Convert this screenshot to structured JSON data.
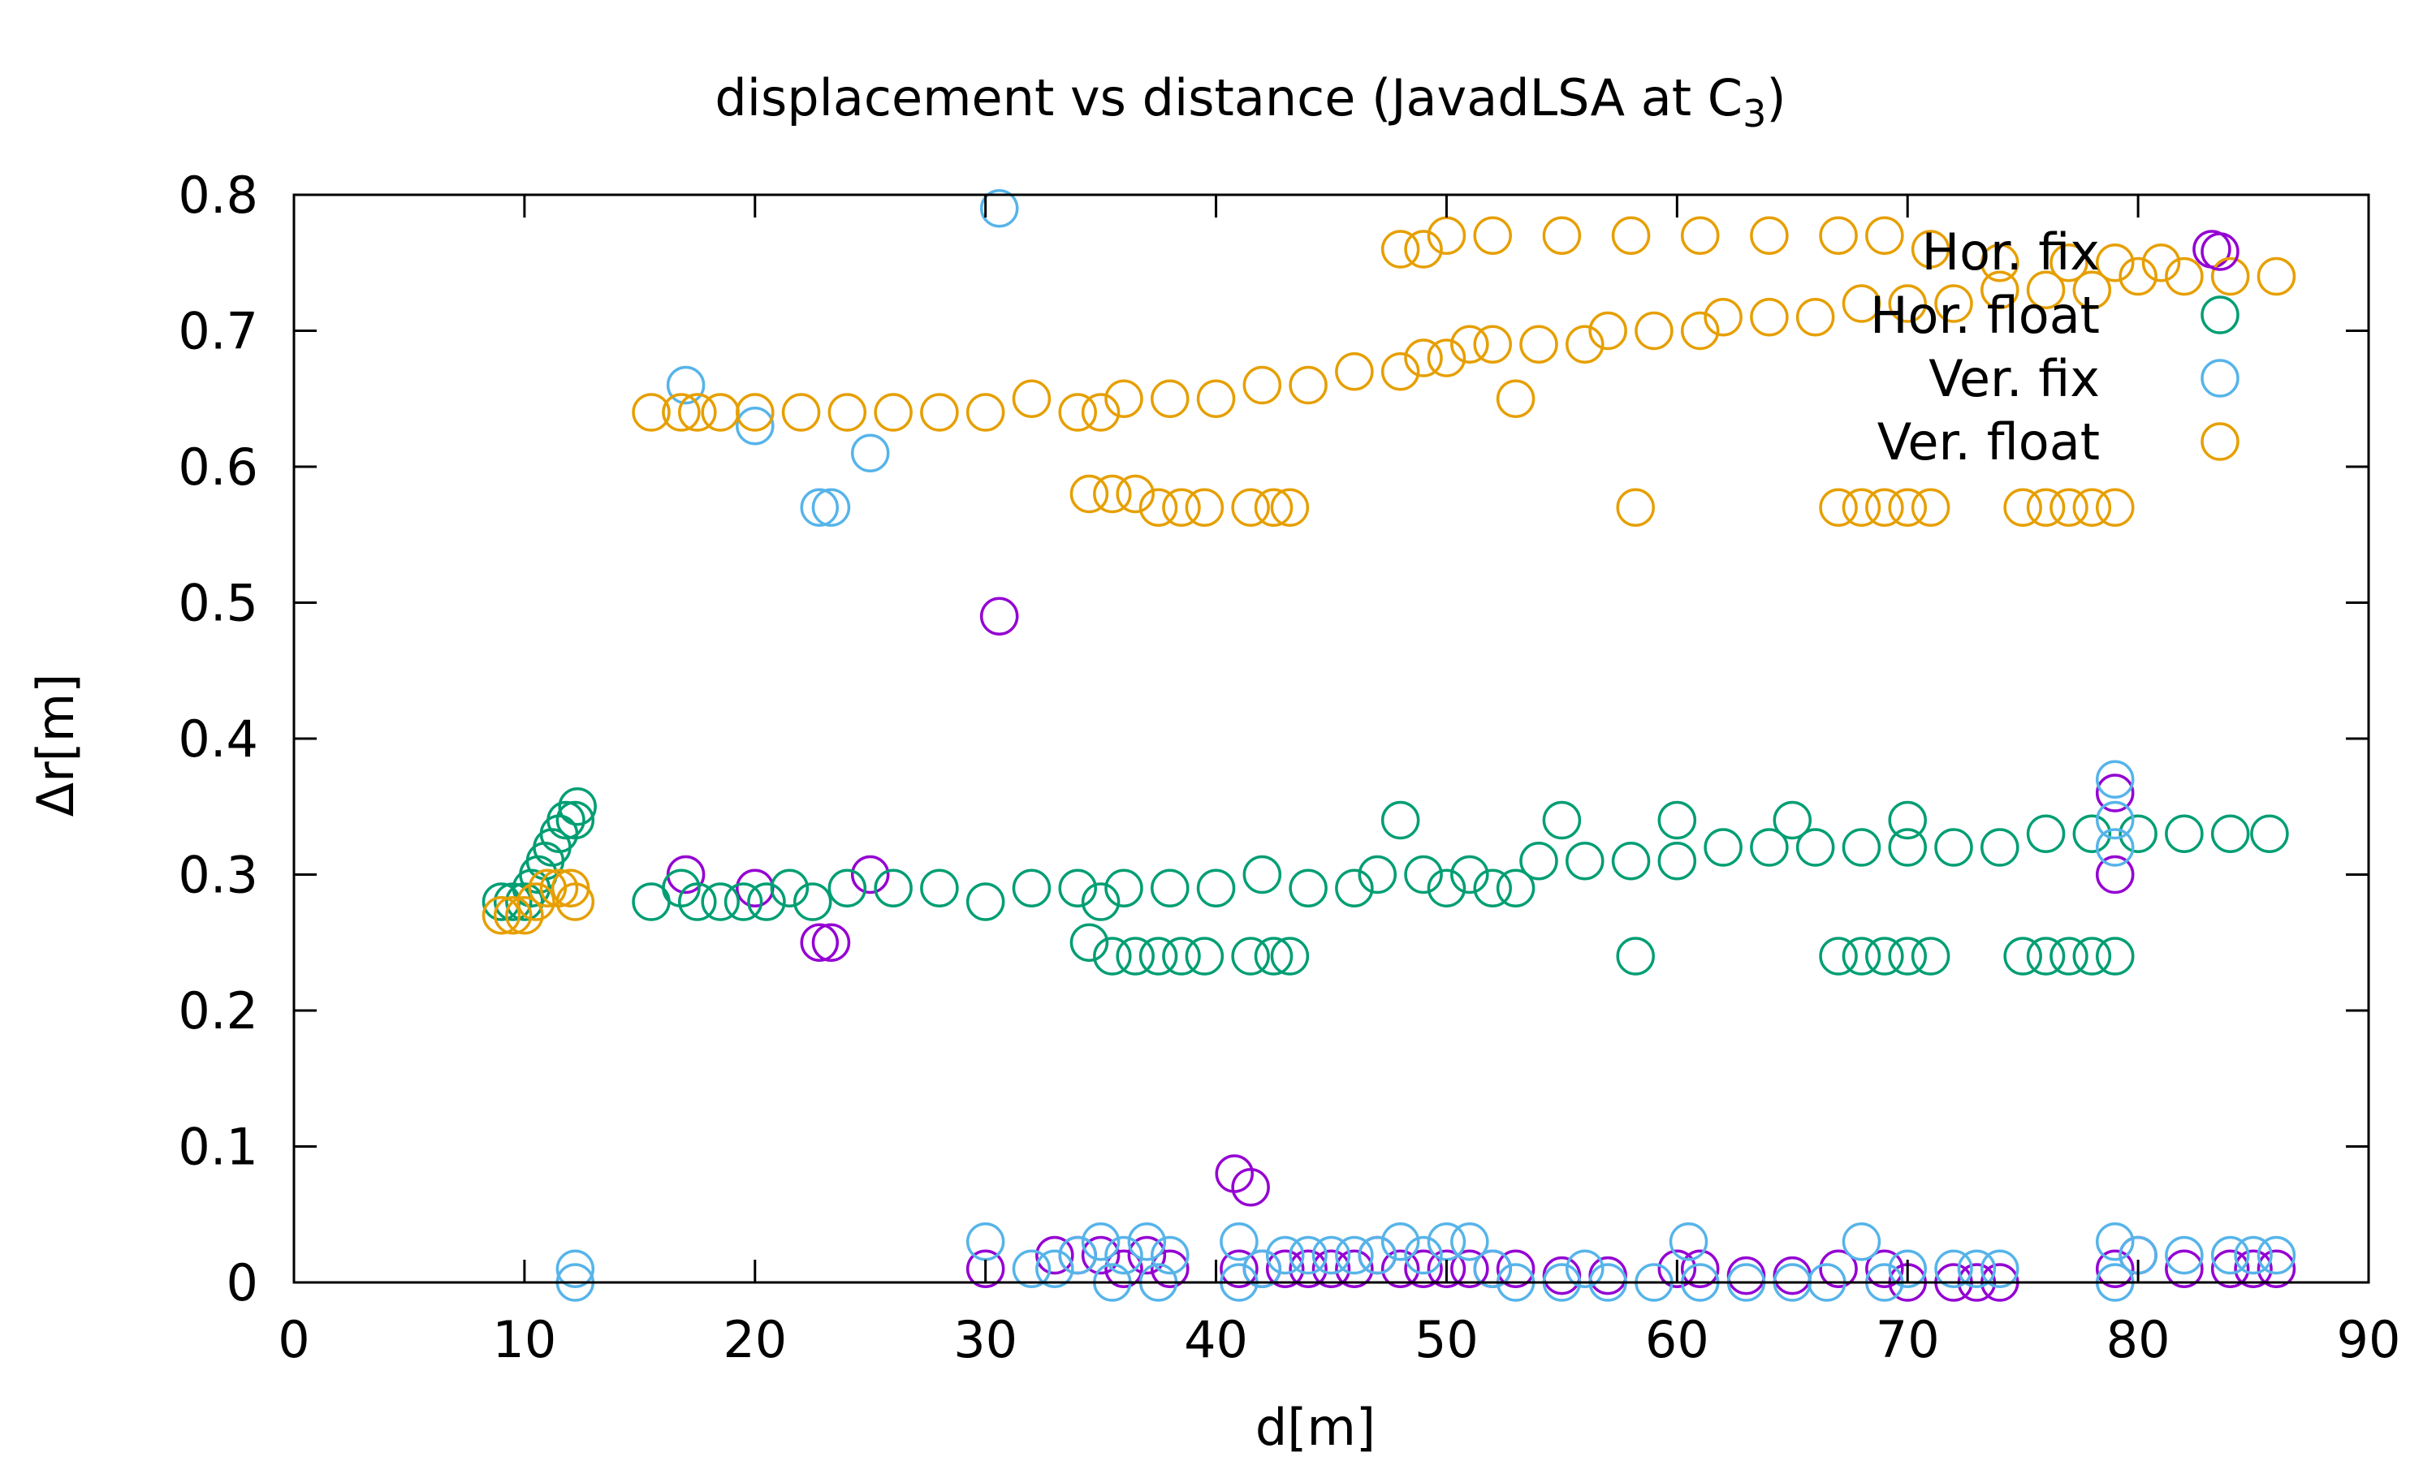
{
  "chart_data": {
    "type": "scatter",
    "title": "displacement vs distance (JavadLSA at C",
    "title_sub": "3",
    "title_end": ")",
    "xlabel": "d[m]",
    "ylabel": "Δr[m]",
    "xlim": [
      0,
      90
    ],
    "ylim": [
      0,
      0.8
    ],
    "x_ticks": [
      0,
      10,
      20,
      30,
      40,
      50,
      60,
      70,
      80,
      90
    ],
    "x_tick_labels": [
      "0",
      "10",
      "20",
      "30",
      "40",
      "50",
      "60",
      "70",
      "80",
      "90"
    ],
    "y_ticks": [
      0,
      0.1,
      0.2,
      0.3,
      0.4,
      0.5,
      0.6,
      0.7,
      0.8
    ],
    "y_tick_labels": [
      "0",
      "0.1",
      "0.2",
      "0.3",
      "0.4",
      "0.5",
      "0.6",
      "0.7",
      "0.8"
    ],
    "grid": false,
    "legend_position": "top-right",
    "marker": "open-circle",
    "series": [
      {
        "name": "Hor. fix",
        "color": "#9400d3",
        "points": [
          [
            30.6,
            0.49
          ],
          [
            17,
            0.3
          ],
          [
            20,
            0.29
          ],
          [
            25,
            0.3
          ],
          [
            22.8,
            0.25
          ],
          [
            23.3,
            0.25
          ],
          [
            40.8,
            0.08
          ],
          [
            41.5,
            0.07
          ],
          [
            30,
            0.01
          ],
          [
            33,
            0.02
          ],
          [
            34,
            0.02
          ],
          [
            35,
            0.02
          ],
          [
            36,
            0.01
          ],
          [
            37,
            0.02
          ],
          [
            38,
            0.01
          ],
          [
            41,
            0.01
          ],
          [
            42,
            0.01
          ],
          [
            43,
            0.01
          ],
          [
            44,
            0.01
          ],
          [
            45,
            0.01
          ],
          [
            46,
            0.01
          ],
          [
            47,
            0.02
          ],
          [
            48,
            0.01
          ],
          [
            49,
            0.01
          ],
          [
            50,
            0.01
          ],
          [
            51,
            0.01
          ],
          [
            52,
            0.01
          ],
          [
            53,
            0.01
          ],
          [
            55,
            0.005
          ],
          [
            57,
            0.005
          ],
          [
            60,
            0.01
          ],
          [
            61,
            0.01
          ],
          [
            63,
            0.005
          ],
          [
            65,
            0.005
          ],
          [
            67,
            0.01
          ],
          [
            69,
            0.01
          ],
          [
            70,
            0.0
          ],
          [
            72,
            0.0
          ],
          [
            73,
            0.0
          ],
          [
            74,
            0.0
          ],
          [
            79,
            0.36
          ],
          [
            79,
            0.3
          ],
          [
            79,
            0.01
          ],
          [
            80,
            0.02
          ],
          [
            82,
            0.01
          ],
          [
            84,
            0.01
          ],
          [
            85,
            0.01
          ],
          [
            86,
            0.01
          ],
          [
            83.2,
            0.76
          ]
        ]
      },
      {
        "name": "Hor. float",
        "color": "#009e73",
        "points": [
          [
            9,
            0.28
          ],
          [
            9.5,
            0.28
          ],
          [
            10,
            0.28
          ],
          [
            10.3,
            0.29
          ],
          [
            10.6,
            0.3
          ],
          [
            10.9,
            0.31
          ],
          [
            11.2,
            0.32
          ],
          [
            11.5,
            0.33
          ],
          [
            11.8,
            0.34
          ],
          [
            12.2,
            0.34
          ],
          [
            12.3,
            0.35
          ],
          [
            15.5,
            0.28
          ],
          [
            16.8,
            0.29
          ],
          [
            17.5,
            0.28
          ],
          [
            18.5,
            0.28
          ],
          [
            19.5,
            0.28
          ],
          [
            20.5,
            0.28
          ],
          [
            21.5,
            0.29
          ],
          [
            22.5,
            0.28
          ],
          [
            24,
            0.29
          ],
          [
            26,
            0.29
          ],
          [
            28,
            0.29
          ],
          [
            30,
            0.28
          ],
          [
            32,
            0.29
          ],
          [
            34,
            0.29
          ],
          [
            35,
            0.28
          ],
          [
            34.5,
            0.25
          ],
          [
            35.5,
            0.24
          ],
          [
            36.5,
            0.24
          ],
          [
            37.5,
            0.24
          ],
          [
            38.5,
            0.24
          ],
          [
            39.5,
            0.24
          ],
          [
            36,
            0.29
          ],
          [
            38,
            0.29
          ],
          [
            40,
            0.29
          ],
          [
            41.5,
            0.24
          ],
          [
            42.5,
            0.24
          ],
          [
            43.2,
            0.24
          ],
          [
            42,
            0.3
          ],
          [
            44,
            0.29
          ],
          [
            46,
            0.29
          ],
          [
            47,
            0.3
          ],
          [
            48,
            0.34
          ],
          [
            49,
            0.3
          ],
          [
            50,
            0.29
          ],
          [
            51,
            0.3
          ],
          [
            52,
            0.29
          ],
          [
            53,
            0.29
          ],
          [
            54,
            0.31
          ],
          [
            56,
            0.31
          ],
          [
            58,
            0.31
          ],
          [
            58.2,
            0.24
          ],
          [
            60,
            0.31
          ],
          [
            62,
            0.32
          ],
          [
            64,
            0.32
          ],
          [
            66,
            0.32
          ],
          [
            67,
            0.24
          ],
          [
            68,
            0.24
          ],
          [
            69,
            0.24
          ],
          [
            70,
            0.24
          ],
          [
            71,
            0.24
          ],
          [
            68,
            0.32
          ],
          [
            70,
            0.32
          ],
          [
            72,
            0.32
          ],
          [
            74,
            0.32
          ],
          [
            75,
            0.24
          ],
          [
            76,
            0.24
          ],
          [
            77,
            0.24
          ],
          [
            78,
            0.24
          ],
          [
            79,
            0.24
          ],
          [
            76,
            0.33
          ],
          [
            78,
            0.33
          ],
          [
            80,
            0.33
          ],
          [
            82,
            0.33
          ],
          [
            84,
            0.33
          ],
          [
            85.7,
            0.33
          ],
          [
            55,
            0.34
          ],
          [
            60,
            0.34
          ],
          [
            65,
            0.34
          ],
          [
            70,
            0.34
          ]
        ]
      },
      {
        "name": "Ver. fix",
        "color": "#56b4e9",
        "points": [
          [
            30.6,
            0.79
          ],
          [
            17,
            0.66
          ],
          [
            20,
            0.63
          ],
          [
            25,
            0.61
          ],
          [
            22.8,
            0.57
          ],
          [
            23.3,
            0.57
          ],
          [
            12.2,
            0.01
          ],
          [
            12.2,
            0.0
          ],
          [
            30,
            0.03
          ],
          [
            32,
            0.01
          ],
          [
            33,
            0.01
          ],
          [
            34,
            0.02
          ],
          [
            35,
            0.03
          ],
          [
            35.5,
            0.0
          ],
          [
            36,
            0.02
          ],
          [
            37,
            0.03
          ],
          [
            38,
            0.02
          ],
          [
            37.5,
            0.0
          ],
          [
            41,
            0.03
          ],
          [
            41,
            0.0
          ],
          [
            42,
            0.01
          ],
          [
            43,
            0.02
          ],
          [
            44,
            0.02
          ],
          [
            45,
            0.02
          ],
          [
            46,
            0.02
          ],
          [
            47,
            0.02
          ],
          [
            48,
            0.03
          ],
          [
            49,
            0.02
          ],
          [
            50,
            0.03
          ],
          [
            51,
            0.03
          ],
          [
            52,
            0.01
          ],
          [
            53,
            0.0
          ],
          [
            55,
            0.0
          ],
          [
            56,
            0.01
          ],
          [
            57,
            0.0
          ],
          [
            59,
            0.0
          ],
          [
            60.5,
            0.03
          ],
          [
            61,
            0.0
          ],
          [
            63,
            0.0
          ],
          [
            65,
            0.0
          ],
          [
            66.5,
            0.0
          ],
          [
            68,
            0.03
          ],
          [
            69,
            0.0
          ],
          [
            70,
            0.01
          ],
          [
            72,
            0.01
          ],
          [
            73,
            0.01
          ],
          [
            74,
            0.01
          ],
          [
            79,
            0.37
          ],
          [
            79,
            0.34
          ],
          [
            79,
            0.32
          ],
          [
            79,
            0.03
          ],
          [
            79,
            0.0
          ],
          [
            80,
            0.02
          ],
          [
            82,
            0.02
          ],
          [
            84,
            0.02
          ],
          [
            85,
            0.02
          ],
          [
            86,
            0.02
          ]
        ]
      },
      {
        "name": "Ver. float",
        "color": "#e69f00",
        "points": [
          [
            9,
            0.27
          ],
          [
            9.5,
            0.27
          ],
          [
            10,
            0.27
          ],
          [
            10.5,
            0.28
          ],
          [
            11,
            0.29
          ],
          [
            11.5,
            0.29
          ],
          [
            12,
            0.29
          ],
          [
            12.2,
            0.28
          ],
          [
            15.5,
            0.64
          ],
          [
            16.8,
            0.64
          ],
          [
            17.5,
            0.64
          ],
          [
            18.5,
            0.64
          ],
          [
            20,
            0.64
          ],
          [
            22,
            0.64
          ],
          [
            24,
            0.64
          ],
          [
            26,
            0.64
          ],
          [
            28,
            0.64
          ],
          [
            30,
            0.64
          ],
          [
            32,
            0.65
          ],
          [
            34,
            0.64
          ],
          [
            35,
            0.64
          ],
          [
            36,
            0.65
          ],
          [
            38,
            0.65
          ],
          [
            40,
            0.65
          ],
          [
            42,
            0.66
          ],
          [
            44,
            0.66
          ],
          [
            46,
            0.67
          ],
          [
            48,
            0.67
          ],
          [
            49,
            0.68
          ],
          [
            50,
            0.68
          ],
          [
            51,
            0.69
          ],
          [
            52,
            0.69
          ],
          [
            53,
            0.65
          ],
          [
            54,
            0.69
          ],
          [
            56,
            0.69
          ],
          [
            57,
            0.7
          ],
          [
            59,
            0.7
          ],
          [
            61,
            0.7
          ],
          [
            62,
            0.71
          ],
          [
            64,
            0.71
          ],
          [
            66,
            0.71
          ],
          [
            68,
            0.72
          ],
          [
            70,
            0.72
          ],
          [
            72,
            0.72
          ],
          [
            74,
            0.73
          ],
          [
            76,
            0.73
          ],
          [
            78,
            0.73
          ],
          [
            80,
            0.74
          ],
          [
            82,
            0.74
          ],
          [
            84,
            0.74
          ],
          [
            86,
            0.74
          ],
          [
            48,
            0.76
          ],
          [
            49,
            0.76
          ],
          [
            50,
            0.77
          ],
          [
            52,
            0.77
          ],
          [
            55,
            0.77
          ],
          [
            58,
            0.77
          ],
          [
            61,
            0.77
          ],
          [
            64,
            0.77
          ],
          [
            67,
            0.77
          ],
          [
            69,
            0.77
          ],
          [
            71,
            0.76
          ],
          [
            74,
            0.75
          ],
          [
            77,
            0.75
          ],
          [
            79,
            0.75
          ],
          [
            81,
            0.75
          ],
          [
            34.5,
            0.58
          ],
          [
            35.5,
            0.58
          ],
          [
            36.5,
            0.58
          ],
          [
            37.5,
            0.57
          ],
          [
            38.5,
            0.57
          ],
          [
            39.5,
            0.57
          ],
          [
            41.5,
            0.57
          ],
          [
            42.5,
            0.57
          ],
          [
            43.2,
            0.57
          ],
          [
            58.2,
            0.57
          ],
          [
            67,
            0.57
          ],
          [
            68,
            0.57
          ],
          [
            69,
            0.57
          ],
          [
            70,
            0.57
          ],
          [
            71,
            0.57
          ],
          [
            75,
            0.57
          ],
          [
            76,
            0.57
          ],
          [
            77,
            0.57
          ],
          [
            78,
            0.57
          ],
          [
            79,
            0.57
          ]
        ]
      }
    ]
  }
}
